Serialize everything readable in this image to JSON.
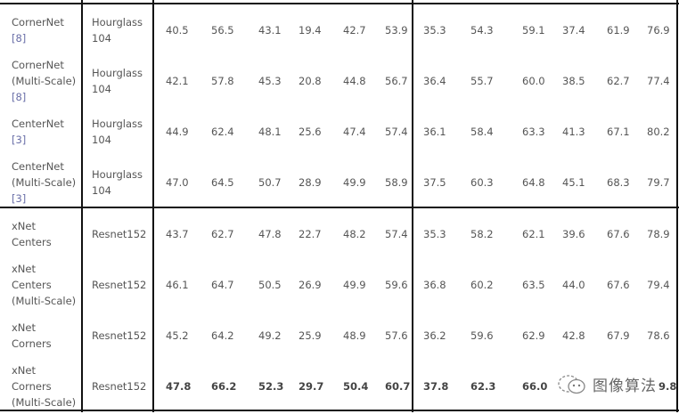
{
  "rows": [
    {
      "method": "CornerNet",
      "ref": "[8]",
      "backbone": "Hourglass\n104",
      "values": [
        "40.5",
        "56.5",
        "43.1",
        "19.4",
        "42.7",
        "53.9",
        "35.3",
        "54.3",
        "59.1",
        "37.4",
        "61.9",
        "76.9"
      ]
    },
    {
      "method": "CornerNet\n(Multi-Scale)",
      "ref": "[8]",
      "backbone": "Hourglass\n104",
      "values": [
        "42.1",
        "57.8",
        "45.3",
        "20.8",
        "44.8",
        "56.7",
        "36.4",
        "55.7",
        "60.0",
        "38.5",
        "62.7",
        "77.4"
      ]
    },
    {
      "method": "CenterNet",
      "ref": "[3]",
      "backbone": "Hourglass\n104",
      "values": [
        "44.9",
        "62.4",
        "48.1",
        "25.6",
        "47.4",
        "57.4",
        "36.1",
        "58.4",
        "63.3",
        "41.3",
        "67.1",
        "80.2"
      ]
    },
    {
      "method": "CenterNet\n(Multi-Scale)",
      "ref": "[3]",
      "backbone": "Hourglass\n104",
      "values": [
        "47.0",
        "64.5",
        "50.7",
        "28.9",
        "49.9",
        "58.9",
        "37.5",
        "60.3",
        "64.8",
        "45.1",
        "68.3",
        "79.7"
      ]
    },
    {
      "method": "xNet\nCenters",
      "ref": "",
      "backbone": "Resnet152",
      "values": [
        "43.7",
        "62.7",
        "47.8",
        "22.7",
        "48.2",
        "57.4",
        "35.3",
        "58.2",
        "62.1",
        "39.6",
        "67.6",
        "78.9"
      ]
    },
    {
      "method": "xNet\nCenters\n(Multi-Scale)",
      "ref": "",
      "backbone": "Resnet152",
      "values": [
        "46.1",
        "64.7",
        "50.5",
        "26.9",
        "49.9",
        "59.6",
        "36.8",
        "60.2",
        "63.5",
        "44.0",
        "67.6",
        "79.4"
      ]
    },
    {
      "method": "xNet\nCorners",
      "ref": "",
      "backbone": "Resnet152",
      "values": [
        "45.2",
        "64.2",
        "49.2",
        "25.9",
        "48.9",
        "57.6",
        "36.2",
        "59.6",
        "62.9",
        "42.8",
        "67.9",
        "78.6"
      ]
    },
    {
      "method": "xNet\nCorners\n(Multi-Scale)",
      "ref": "",
      "backbone": "Resnet152",
      "bold": true,
      "values": [
        "47.8",
        "66.2",
        "52.3",
        "29.7",
        "50.4",
        "60.7",
        "37.8",
        "62.3",
        "66.0",
        "",
        "",
        "9.8"
      ]
    }
  ],
  "watermark": {
    "text": "图像算法",
    "icon": "wechat-icon"
  }
}
